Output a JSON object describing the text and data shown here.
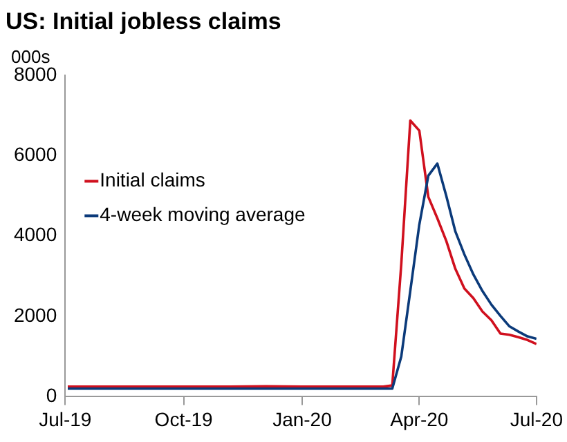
{
  "chart_data": {
    "type": "line",
    "title": "US: Initial jobless claims",
    "ylabel": "000s",
    "x": [
      "2019-07-03",
      "2019-08-07",
      "2019-09-04",
      "2019-10-02",
      "2019-11-06",
      "2019-12-04",
      "2020-01-01",
      "2020-01-29",
      "2020-02-26",
      "2020-03-04",
      "2020-03-11",
      "2020-03-18",
      "2020-03-25",
      "2020-04-01",
      "2020-04-08",
      "2020-04-15",
      "2020-04-22",
      "2020-04-29",
      "2020-05-06",
      "2020-05-13",
      "2020-05-20",
      "2020-05-27",
      "2020-06-03",
      "2020-06-10",
      "2020-06-17",
      "2020-06-24",
      "2020-07-01"
    ],
    "series": [
      {
        "name": "Initial claims",
        "color": "#d0101e",
        "values": [
          250,
          250,
          250,
          250,
          250,
          260,
          250,
          250,
          250,
          250,
          280,
          3300,
          6870,
          6620,
          4970,
          4440,
          3870,
          3180,
          2690,
          2450,
          2120,
          1900,
          1570,
          1540,
          1480,
          1410,
          1310
        ]
      },
      {
        "name": "4-week moving average",
        "color": "#0b3a7a",
        "values": [
          200,
          200,
          200,
          200,
          200,
          200,
          200,
          200,
          200,
          200,
          200,
          1000,
          2630,
          4280,
          5500,
          5800,
          4990,
          4110,
          3540,
          3040,
          2630,
          2290,
          2010,
          1750,
          1620,
          1500,
          1440
        ]
      }
    ],
    "xlim": [
      "2019-07-01",
      "2020-07-01"
    ],
    "xticks": [
      {
        "value": "2019-07-01",
        "label": "Jul-19"
      },
      {
        "value": "2019-10-01",
        "label": "Oct-19"
      },
      {
        "value": "2020-01-01",
        "label": "Jan-20"
      },
      {
        "value": "2020-04-01",
        "label": "Apr-20"
      },
      {
        "value": "2020-07-01",
        "label": "Jul-20"
      }
    ],
    "ylim": [
      0,
      8000
    ],
    "yticks": [
      0,
      2000,
      4000,
      6000,
      8000
    ],
    "grid": false,
    "legend": "left",
    "marker": "none",
    "line_style": "solid"
  }
}
